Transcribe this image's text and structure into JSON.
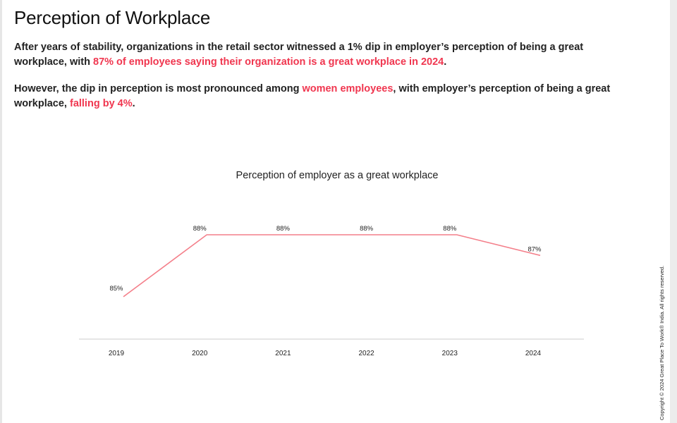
{
  "page": {
    "title": "Perception of Workplace",
    "paragraph1": {
      "part1": "After years of stability, organizations in the retail sector witnessed a 1% dip in employer’s perception of being a great workplace, with ",
      "highlight": "87% of employees saying their organization is a great workplace in 2024",
      "part2": "."
    },
    "paragraph2": {
      "part1": "However, the dip in perception is most pronounced among ",
      "highlight1": "women employees",
      "part2": ", with employer’s perception of being a great workplace, ",
      "highlight2": "falling by 4%",
      "part3": "."
    },
    "copyright": "Copyright © 2024 Great Place To Work® India. All rights reserved."
  },
  "colors": {
    "highlight": "#f0364f",
    "line": "#f47f8a",
    "axis": "#cccccc"
  },
  "chart_data": {
    "type": "line",
    "title": "Perception of employer as a great workplace",
    "categories": [
      "2019",
      "2020",
      "2021",
      "2022",
      "2023",
      "2024"
    ],
    "series": [
      {
        "values": [
          85,
          88,
          88,
          88,
          88,
          87
        ],
        "labels": [
          "85%",
          "88%",
          "88%",
          "88%",
          "88%",
          "87%"
        ]
      }
    ],
    "grid": false,
    "legend": "none"
  }
}
